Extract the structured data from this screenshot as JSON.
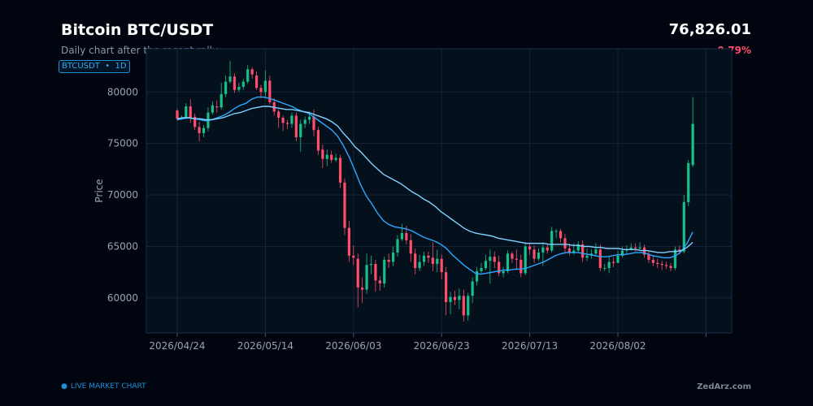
{
  "header": {
    "title": "Bitcoin BTC/USDT",
    "subtitle": "Daily chart after the recent rally",
    "badge": "BTCUSDT  •  1D",
    "price": "76,826.01",
    "change": "-0.79%"
  },
  "footer": {
    "live": "LIVE MARKET CHART",
    "brand": "ZedArz.com"
  },
  "colors": {
    "up": "#17c088",
    "down": "#ff4d6a",
    "ma_fast": "#2ca8ff",
    "ma_slow": "#7fd1ff",
    "plot_bg": "#05101d",
    "grid": "#13243a"
  },
  "chart_data": {
    "type": "candlestick",
    "ylabel": "Price",
    "xlabel": "",
    "ylim": [
      56600,
      84200
    ],
    "yticks": [
      60000,
      65000,
      70000,
      75000,
      80000
    ],
    "start_date": "2026-04-24",
    "xticks": [
      "2026/04/24",
      "2026/05/14",
      "2026/06/03",
      "2026/06/23",
      "2026/07/13",
      "2026/08/02",
      ""
    ],
    "grid": true,
    "ma_lines": [
      {
        "period": "fast",
        "values": [
          77300,
          77400,
          77500,
          77400,
          77300,
          77200,
          77300,
          77500,
          77700,
          78000,
          78400,
          78700,
          78900,
          79300,
          79500,
          79500,
          79400,
          79200,
          79000,
          78800,
          78600,
          78300,
          78100,
          77900,
          77500,
          77100,
          76700,
          76300,
          75700,
          74800,
          73700,
          72400,
          71000,
          69900,
          69100,
          68200,
          67500,
          67100,
          66900,
          66800,
          66700,
          66500,
          66200,
          65900,
          65700,
          65500,
          65200,
          64800,
          64200,
          63700,
          63200,
          62800,
          62400,
          62300,
          62400,
          62500,
          62600,
          62700,
          62700,
          62800,
          62800,
          62900,
          63100,
          63300,
          63500,
          63800,
          64100,
          64300,
          64400,
          64400,
          64400,
          64300,
          64200,
          64100,
          64000,
          64000,
          64100,
          64200,
          64200,
          64300,
          64400,
          64400,
          64300,
          64100,
          64000,
          63900,
          63900,
          64100,
          64500,
          65300,
          66400
        ]
      },
      {
        "period": "slow",
        "values": [
          77400,
          77500,
          77500,
          77400,
          77400,
          77300,
          77300,
          77400,
          77500,
          77700,
          77900,
          78000,
          78200,
          78400,
          78500,
          78600,
          78600,
          78500,
          78400,
          78300,
          78300,
          78200,
          78100,
          78000,
          77800,
          77600,
          77400,
          77100,
          76700,
          76000,
          75400,
          74700,
          74200,
          73600,
          73000,
          72500,
          72000,
          71700,
          71400,
          71100,
          70700,
          70300,
          70000,
          69600,
          69300,
          68900,
          68400,
          68000,
          67600,
          67200,
          66800,
          66500,
          66300,
          66200,
          66100,
          66000,
          65800,
          65700,
          65600,
          65500,
          65400,
          65300,
          65300,
          65300,
          65300,
          65200,
          65200,
          65200,
          65200,
          65100,
          65100,
          65000,
          65000,
          64900,
          64900,
          64800,
          64800,
          64800,
          64700,
          64700,
          64700,
          64600,
          64600,
          64500,
          64400,
          64400,
          64500,
          64500,
          64600,
          64900,
          65400
        ]
      }
    ],
    "candles": [
      [
        78200,
        77400,
        78400,
        77200
      ],
      [
        77400,
        77500,
        77700,
        77300
      ],
      [
        77500,
        78600,
        78900,
        77400
      ],
      [
        78600,
        77500,
        79300,
        77000
      ],
      [
        77600,
        76600,
        77900,
        76300
      ],
      [
        76600,
        76000,
        77100,
        75200
      ],
      [
        76000,
        76500,
        76800,
        75600
      ],
      [
        76500,
        78000,
        78500,
        76200
      ],
      [
        78000,
        78700,
        79100,
        77800
      ],
      [
        78600,
        78500,
        79200,
        78000
      ],
      [
        78500,
        79800,
        80900,
        78300
      ],
      [
        79800,
        81000,
        81600,
        79500
      ],
      [
        81000,
        81500,
        83000,
        80800
      ],
      [
        81500,
        80200,
        81800,
        79900
      ],
      [
        80200,
        80500,
        80900,
        80000
      ],
      [
        80500,
        81000,
        81300,
        80200
      ],
      [
        81000,
        82200,
        82600,
        80800
      ],
      [
        82200,
        81700,
        82400,
        81300
      ],
      [
        81600,
        80400,
        82000,
        80200
      ],
      [
        80400,
        80000,
        80700,
        79400
      ],
      [
        80000,
        81100,
        82100,
        79500
      ],
      [
        81100,
        79000,
        81600,
        78800
      ],
      [
        79000,
        78100,
        79400,
        77700
      ],
      [
        78100,
        77500,
        78300,
        76500
      ],
      [
        77500,
        77000,
        77700,
        76200
      ],
      [
        77000,
        76900,
        77300,
        76400
      ],
      [
        76900,
        77700,
        78000,
        76500
      ],
      [
        77700,
        75600,
        78000,
        75200
      ],
      [
        75600,
        76900,
        77300,
        74200
      ],
      [
        76900,
        77300,
        77600,
        76500
      ],
      [
        77300,
        77600,
        78100,
        76900
      ],
      [
        77600,
        76300,
        78300,
        75700
      ],
      [
        76300,
        74300,
        76600,
        73900
      ],
      [
        74400,
        73500,
        74900,
        72600
      ],
      [
        73500,
        73900,
        74400,
        72800
      ],
      [
        73900,
        73400,
        74300,
        73100
      ],
      [
        73400,
        73600,
        74000,
        73200
      ],
      [
        73600,
        71200,
        73900,
        70700
      ],
      [
        71200,
        66800,
        71600,
        66100
      ],
      [
        66800,
        64100,
        67500,
        63500
      ],
      [
        64100,
        63900,
        65100,
        63200
      ],
      [
        63800,
        61000,
        64300,
        59100
      ],
      [
        61000,
        60800,
        62000,
        59500
      ],
      [
        60800,
        63200,
        64300,
        60400
      ],
      [
        63200,
        63300,
        64100,
        62300
      ],
      [
        63300,
        61700,
        63700,
        60600
      ],
      [
        61700,
        61400,
        62100,
        60700
      ],
      [
        61400,
        63700,
        64000,
        61000
      ],
      [
        63700,
        63500,
        64300,
        62900
      ],
      [
        63500,
        64400,
        65000,
        63100
      ],
      [
        64400,
        65700,
        66100,
        64000
      ],
      [
        65700,
        66300,
        67200,
        65500
      ],
      [
        66300,
        65600,
        67000,
        65200
      ],
      [
        65600,
        64300,
        66200,
        63500
      ],
      [
        64300,
        62900,
        64800,
        62300
      ],
      [
        62900,
        63500,
        64200,
        62600
      ],
      [
        63500,
        64100,
        64500,
        63100
      ],
      [
        64100,
        63900,
        64500,
        63400
      ],
      [
        63900,
        63300,
        65400,
        62600
      ],
      [
        63300,
        63800,
        64700,
        62500
      ],
      [
        63800,
        62500,
        64200,
        61800
      ],
      [
        62500,
        59600,
        63000,
        58300
      ],
      [
        59600,
        60100,
        60600,
        58400
      ],
      [
        60100,
        59800,
        60700,
        59300
      ],
      [
        59800,
        60200,
        60900,
        58900
      ],
      [
        60200,
        58300,
        60800,
        57700
      ],
      [
        58300,
        60200,
        60500,
        57800
      ],
      [
        60200,
        61600,
        62000,
        59500
      ],
      [
        61600,
        62600,
        63000,
        61200
      ],
      [
        62600,
        62900,
        63400,
        62400
      ],
      [
        62900,
        63600,
        64200,
        62700
      ],
      [
        63600,
        64000,
        64700,
        61400
      ],
      [
        64000,
        63500,
        64500,
        62900
      ],
      [
        63500,
        62400,
        64100,
        62100
      ],
      [
        62400,
        62600,
        63000,
        62000
      ],
      [
        62600,
        64300,
        64600,
        62400
      ],
      [
        64300,
        63800,
        64500,
        63400
      ],
      [
        63800,
        63700,
        64700,
        62700
      ],
      [
        63700,
        62400,
        64200,
        62000
      ],
      [
        62400,
        65000,
        65400,
        62200
      ],
      [
        65000,
        64700,
        65300,
        64200
      ],
      [
        64700,
        63800,
        65100,
        63400
      ],
      [
        63800,
        64400,
        64800,
        63600
      ],
      [
        64400,
        64900,
        65400,
        63100
      ],
      [
        64900,
        64600,
        65200,
        64300
      ],
      [
        64600,
        66500,
        66900,
        64400
      ],
      [
        66500,
        66500,
        66700,
        65800
      ],
      [
        66500,
        65800,
        66700,
        65400
      ],
      [
        65800,
        64800,
        66200,
        64300
      ],
      [
        64800,
        64400,
        65300,
        64100
      ],
      [
        64400,
        64600,
        65300,
        64200
      ],
      [
        64600,
        65200,
        65500,
        64400
      ],
      [
        65200,
        63900,
        65600,
        63500
      ],
      [
        63900,
        64100,
        64800,
        63600
      ],
      [
        64100,
        64300,
        64700,
        63800
      ],
      [
        64300,
        64700,
        65300,
        64000
      ],
      [
        64700,
        62900,
        65200,
        62600
      ],
      [
        62900,
        62900,
        63300,
        62600
      ],
      [
        62900,
        63500,
        64000,
        62400
      ],
      [
        63500,
        63400,
        63900,
        63000
      ],
      [
        63400,
        64100,
        64600,
        63600
      ],
      [
        64100,
        64600,
        65000,
        63900
      ],
      [
        64600,
        64700,
        65100,
        64300
      ],
      [
        64700,
        64900,
        65300,
        64600
      ],
      [
        64900,
        64800,
        65300,
        64500
      ],
      [
        64800,
        64900,
        65400,
        64600
      ],
      [
        64900,
        64200,
        65200,
        63900
      ],
      [
        64200,
        63700,
        64500,
        63400
      ],
      [
        63700,
        63400,
        64100,
        63100
      ],
      [
        63400,
        63300,
        63800,
        62900
      ],
      [
        63300,
        63200,
        63600,
        62700
      ],
      [
        63200,
        63100,
        63500,
        62800
      ],
      [
        63100,
        62900,
        63400,
        62600
      ],
      [
        62900,
        64700,
        65000,
        62700
      ],
      [
        64700,
        64500,
        65100,
        64200
      ],
      [
        64500,
        69300,
        70000,
        64300
      ],
      [
        69300,
        73100,
        73400,
        68900
      ],
      [
        72900,
        76900,
        79500,
        72700
      ]
    ]
  }
}
